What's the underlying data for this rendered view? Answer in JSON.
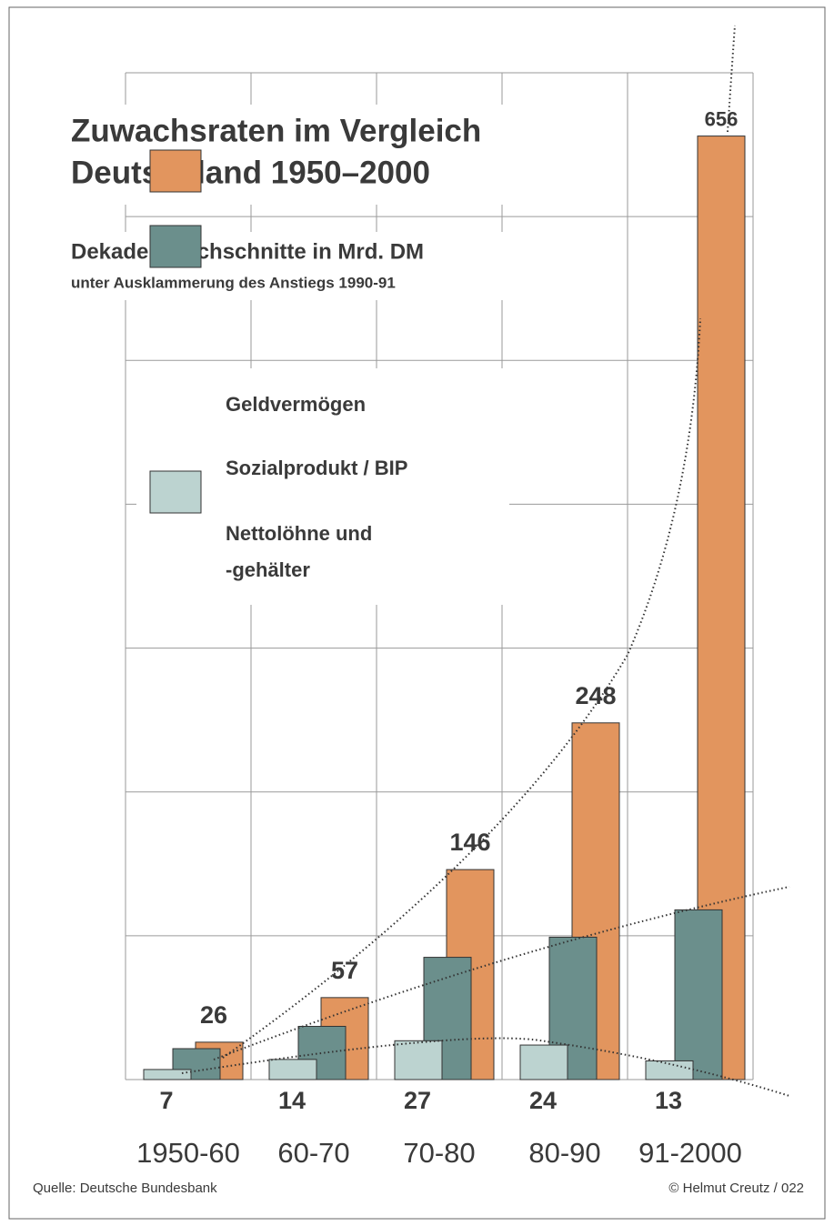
{
  "chart_data": {
    "type": "bar",
    "title": "Zuwachsraten im Vergleich",
    "title_line2": "Deutschland 1950–2000",
    "subtitle": "Dekadendurchschnitte in Mrd. DM",
    "subtitle_note": "unter Ausklammerung des Anstiegs  1990-91",
    "categories": [
      "1950-60",
      "60-70",
      "70-80",
      "80-90",
      "91-2000"
    ],
    "series": [
      {
        "name": "Geldvermögen",
        "color": "#e2955e",
        "values": [
          26,
          57,
          146,
          248,
          656
        ]
      },
      {
        "name": "Sozialprodukt / BIP",
        "color": "#6b8f8c",
        "values": [
          21.5,
          37,
          85,
          99,
          118
        ]
      },
      {
        "name": "Nettolöhne und",
        "name_line2": "-gehälter",
        "color": "#bcd3d0",
        "values": [
          7,
          14,
          27,
          24,
          13
        ]
      }
    ],
    "ylim": [
      0,
      700
    ],
    "yticks": [
      0,
      100,
      200,
      300,
      400,
      500,
      600,
      700
    ],
    "grid": true,
    "source": "Quelle: Deutsche Bundesbank",
    "copyright": "©  Helmut Creutz / 022"
  }
}
